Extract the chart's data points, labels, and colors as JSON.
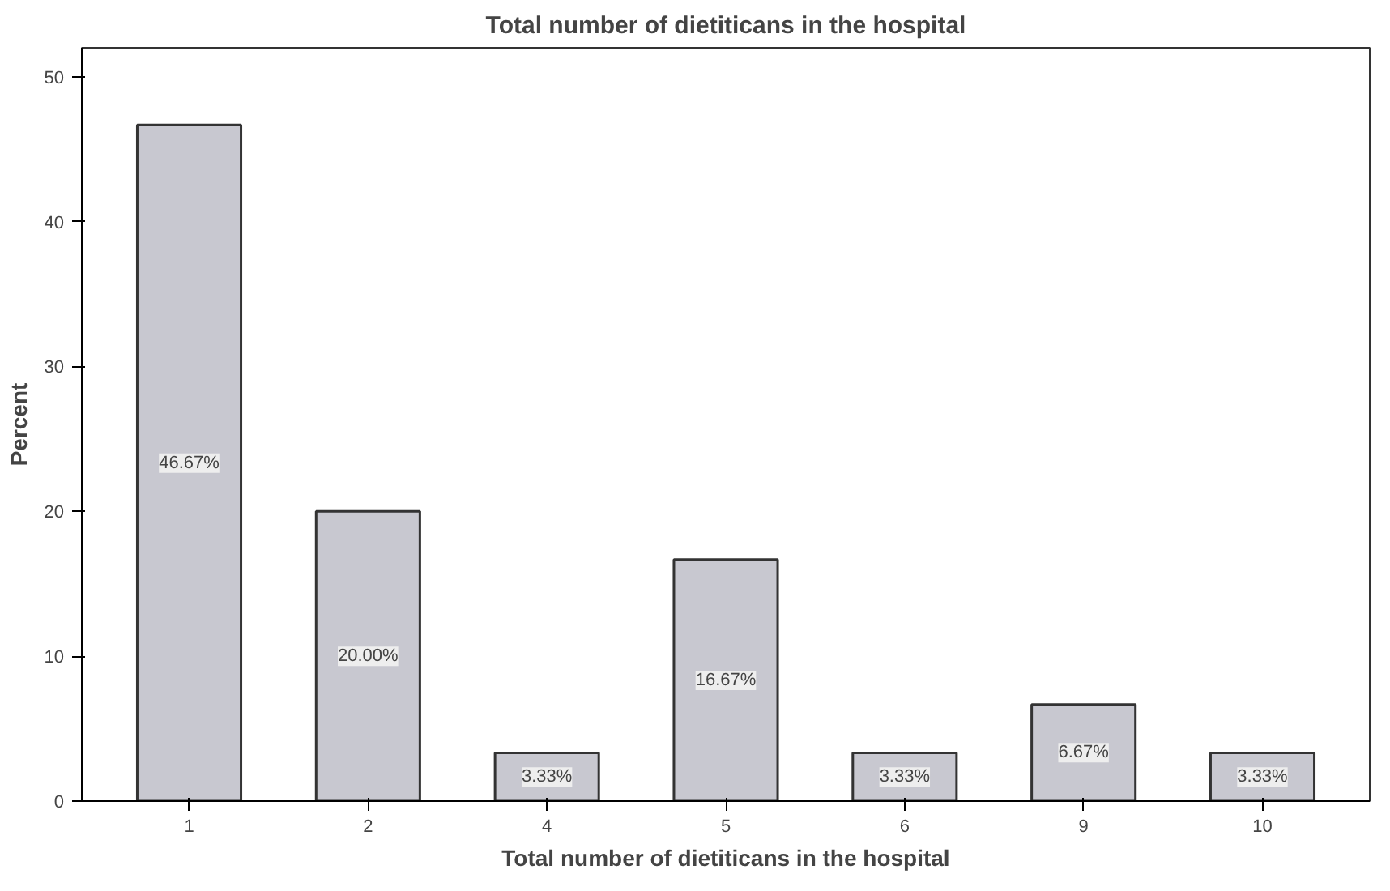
{
  "chart_data": {
    "type": "bar",
    "title": "Total number of dietiticans in the hospital",
    "xlabel": "Total number of dietiticans in the hospital",
    "ylabel": "Percent",
    "categories": [
      "1",
      "2",
      "4",
      "5",
      "6",
      "9",
      "10"
    ],
    "values": [
      46.67,
      20.0,
      3.33,
      16.67,
      3.33,
      6.67,
      3.33
    ],
    "value_labels": [
      "46.67%",
      "20.00%",
      "3.33%",
      "16.67%",
      "3.33%",
      "6.67%",
      "3.33%"
    ],
    "color": "#c8c8d0",
    "ylim": [
      0,
      52
    ],
    "yticks": [
      0,
      10,
      20,
      30,
      40,
      50
    ],
    "grid": false
  }
}
